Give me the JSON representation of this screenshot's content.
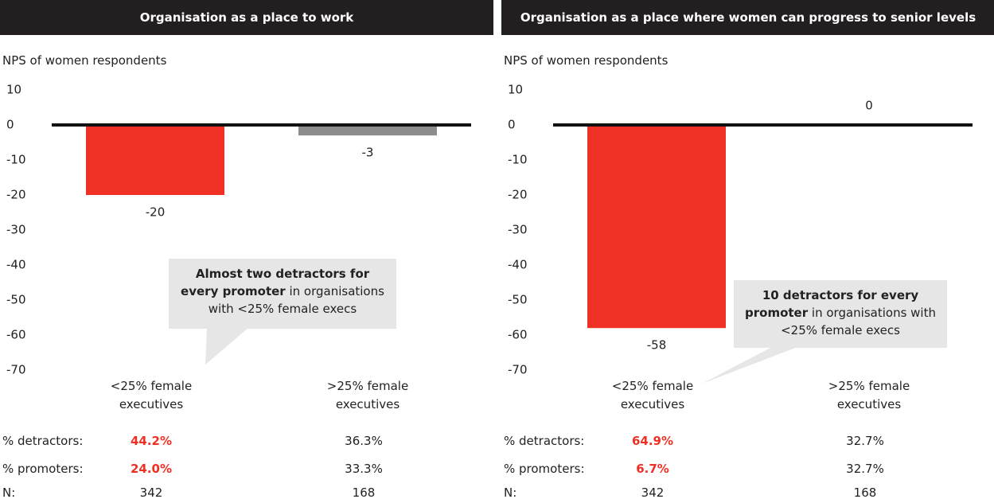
{
  "chart_data": [
    {
      "type": "bar",
      "title": "Organisation as a place to work",
      "subtitle": "NPS of women respondents",
      "categories": [
        "<25% female executives",
        ">25% female executives"
      ],
      "values": [
        -20,
        -3
      ],
      "colors": [
        "#ee3124",
        "#8c8c8c"
      ],
      "ylim": [
        -70,
        10
      ],
      "yticks": [
        10,
        0,
        -10,
        -20,
        -30,
        -40,
        -50,
        -60,
        -70
      ],
      "annotation": {
        "bold": "Almost two detractors for every promoter",
        "text": "in organisations with <25% female execs"
      },
      "table": {
        "rows": [
          {
            "label": "% detractors:",
            "values": [
              "44.2%",
              "36.3%"
            ]
          },
          {
            "label": "% promoters:",
            "values": [
              "24.0%",
              "33.3%"
            ]
          },
          {
            "label": "N:",
            "values": [
              "342",
              "168"
            ]
          }
        ]
      }
    },
    {
      "type": "bar",
      "title": "Organisation as a place where women can progress to senior levels",
      "subtitle": "NPS of women respondents",
      "categories": [
        "<25% female executives",
        ">25% female executives"
      ],
      "values": [
        -58,
        0.4
      ],
      "value_labels": [
        "-58",
        "0"
      ],
      "colors": [
        "#ee3124",
        "#8c8c8c"
      ],
      "ylim": [
        -70,
        10
      ],
      "yticks": [
        10,
        0,
        -10,
        -20,
        -30,
        -40,
        -50,
        -60,
        -70
      ],
      "annotation": {
        "bold": "10 detractors for every promoter",
        "text": "in organisations with <25% female execs"
      },
      "table": {
        "rows": [
          {
            "label": "% detractors:",
            "values": [
              "64.9%",
              "32.7%"
            ]
          },
          {
            "label": "% promoters:",
            "values": [
              "6.7%",
              "32.7%"
            ]
          },
          {
            "label": "N:",
            "values": [
              "342",
              "168"
            ]
          }
        ]
      }
    }
  ]
}
